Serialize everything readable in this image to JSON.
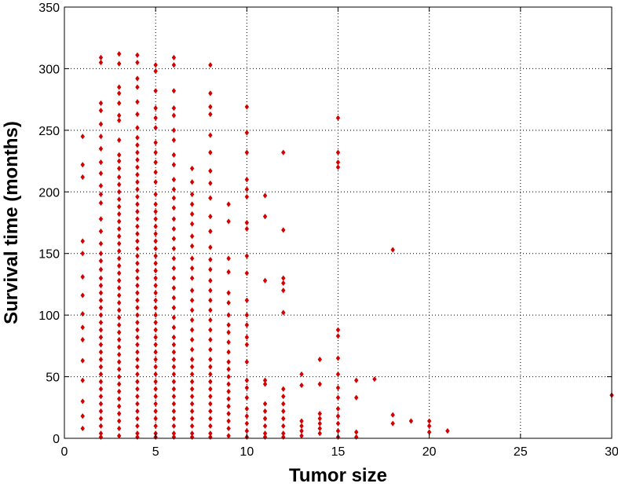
{
  "chart_data": {
    "type": "scatter",
    "title": "",
    "xlabel": "Tumor size",
    "ylabel": "Survival time (months)",
    "xlim": [
      0,
      30
    ],
    "ylim": [
      0,
      350
    ],
    "xticks": [
      0,
      5,
      10,
      15,
      20,
      25,
      30
    ],
    "yticks": [
      0,
      50,
      100,
      150,
      200,
      250,
      300,
      350
    ],
    "grid": true,
    "grid_style": "dotted",
    "marker": "diamond",
    "marker_color": "#d40000",
    "points": [
      [
        1,
        8
      ],
      [
        1,
        18
      ],
      [
        1,
        30
      ],
      [
        1,
        47
      ],
      [
        1,
        63
      ],
      [
        1,
        80
      ],
      [
        1,
        90
      ],
      [
        1,
        101
      ],
      [
        1,
        116
      ],
      [
        1,
        131
      ],
      [
        1,
        150
      ],
      [
        1,
        160
      ],
      [
        1,
        212
      ],
      [
        1,
        222
      ],
      [
        1,
        245
      ],
      [
        2,
        309
      ],
      [
        2,
        305
      ],
      [
        2,
        272
      ],
      [
        2,
        266
      ],
      [
        2,
        255
      ],
      [
        2,
        245
      ],
      [
        2,
        235
      ],
      [
        2,
        224
      ],
      [
        2,
        215
      ],
      [
        2,
        205
      ],
      [
        2,
        198
      ],
      [
        2,
        191
      ],
      [
        2,
        178
      ],
      [
        2,
        168
      ],
      [
        2,
        158
      ],
      [
        2,
        150
      ],
      [
        2,
        144
      ],
      [
        2,
        137
      ],
      [
        2,
        130
      ],
      [
        2,
        124
      ],
      [
        2,
        118
      ],
      [
        2,
        112
      ],
      [
        2,
        106
      ],
      [
        2,
        100
      ],
      [
        2,
        94
      ],
      [
        2,
        88
      ],
      [
        2,
        82
      ],
      [
        2,
        76
      ],
      [
        2,
        70
      ],
      [
        2,
        64
      ],
      [
        2,
        58
      ],
      [
        2,
        52
      ],
      [
        2,
        46
      ],
      [
        2,
        40
      ],
      [
        2,
        34
      ],
      [
        2,
        28
      ],
      [
        2,
        22
      ],
      [
        2,
        16
      ],
      [
        2,
        10
      ],
      [
        2,
        4
      ],
      [
        2,
        1
      ],
      [
        3,
        312
      ],
      [
        3,
        304
      ],
      [
        3,
        285
      ],
      [
        3,
        280
      ],
      [
        3,
        272
      ],
      [
        3,
        262
      ],
      [
        3,
        258
      ],
      [
        3,
        242
      ],
      [
        3,
        230
      ],
      [
        3,
        225
      ],
      [
        3,
        219
      ],
      [
        3,
        212
      ],
      [
        3,
        206
      ],
      [
        3,
        200
      ],
      [
        3,
        194
      ],
      [
        3,
        188
      ],
      [
        3,
        182
      ],
      [
        3,
        176
      ],
      [
        3,
        170
      ],
      [
        3,
        164
      ],
      [
        3,
        158
      ],
      [
        3,
        152
      ],
      [
        3,
        146
      ],
      [
        3,
        140
      ],
      [
        3,
        134
      ],
      [
        3,
        128
      ],
      [
        3,
        122
      ],
      [
        3,
        116
      ],
      [
        3,
        110
      ],
      [
        3,
        104
      ],
      [
        3,
        98
      ],
      [
        3,
        92
      ],
      [
        3,
        86
      ],
      [
        3,
        80
      ],
      [
        3,
        74
      ],
      [
        3,
        68
      ],
      [
        3,
        62
      ],
      [
        3,
        56
      ],
      [
        3,
        50
      ],
      [
        3,
        44
      ],
      [
        3,
        38
      ],
      [
        3,
        32
      ],
      [
        3,
        26
      ],
      [
        3,
        20
      ],
      [
        3,
        14
      ],
      [
        3,
        8
      ],
      [
        3,
        2
      ],
      [
        4,
        311
      ],
      [
        4,
        305
      ],
      [
        4,
        292
      ],
      [
        4,
        285
      ],
      [
        4,
        273
      ],
      [
        4,
        263
      ],
      [
        4,
        252
      ],
      [
        4,
        244
      ],
      [
        4,
        238
      ],
      [
        4,
        232
      ],
      [
        4,
        226
      ],
      [
        4,
        220
      ],
      [
        4,
        214
      ],
      [
        4,
        208
      ],
      [
        4,
        202
      ],
      [
        4,
        196
      ],
      [
        4,
        190
      ],
      [
        4,
        184
      ],
      [
        4,
        178
      ],
      [
        4,
        172
      ],
      [
        4,
        166
      ],
      [
        4,
        160
      ],
      [
        4,
        154
      ],
      [
        4,
        148
      ],
      [
        4,
        142
      ],
      [
        4,
        136
      ],
      [
        4,
        130
      ],
      [
        4,
        124
      ],
      [
        4,
        118
      ],
      [
        4,
        112
      ],
      [
        4,
        106
      ],
      [
        4,
        100
      ],
      [
        4,
        94
      ],
      [
        4,
        88
      ],
      [
        4,
        82
      ],
      [
        4,
        76
      ],
      [
        4,
        70
      ],
      [
        4,
        64
      ],
      [
        4,
        58
      ],
      [
        4,
        52
      ],
      [
        4,
        46
      ],
      [
        4,
        40
      ],
      [
        4,
        34
      ],
      [
        4,
        28
      ],
      [
        4,
        22
      ],
      [
        4,
        16
      ],
      [
        4,
        10
      ],
      [
        4,
        4
      ],
      [
        4,
        1
      ],
      [
        5,
        303
      ],
      [
        5,
        298
      ],
      [
        5,
        282
      ],
      [
        5,
        268
      ],
      [
        5,
        260
      ],
      [
        5,
        252
      ],
      [
        5,
        240
      ],
      [
        5,
        232
      ],
      [
        5,
        224
      ],
      [
        5,
        216
      ],
      [
        5,
        208
      ],
      [
        5,
        198
      ],
      [
        5,
        190
      ],
      [
        5,
        184
      ],
      [
        5,
        178
      ],
      [
        5,
        172
      ],
      [
        5,
        166
      ],
      [
        5,
        160
      ],
      [
        5,
        154
      ],
      [
        5,
        148
      ],
      [
        5,
        142
      ],
      [
        5,
        136
      ],
      [
        5,
        130
      ],
      [
        5,
        124
      ],
      [
        5,
        118
      ],
      [
        5,
        112
      ],
      [
        5,
        106
      ],
      [
        5,
        100
      ],
      [
        5,
        94
      ],
      [
        5,
        88
      ],
      [
        5,
        82
      ],
      [
        5,
        76
      ],
      [
        5,
        70
      ],
      [
        5,
        64
      ],
      [
        5,
        58
      ],
      [
        5,
        52
      ],
      [
        5,
        46
      ],
      [
        5,
        40
      ],
      [
        5,
        34
      ],
      [
        5,
        28
      ],
      [
        5,
        22
      ],
      [
        5,
        16
      ],
      [
        5,
        10
      ],
      [
        5,
        4
      ],
      [
        5,
        1
      ],
      [
        6,
        309
      ],
      [
        6,
        303
      ],
      [
        6,
        282
      ],
      [
        6,
        268
      ],
      [
        6,
        262
      ],
      [
        6,
        250
      ],
      [
        6,
        242
      ],
      [
        6,
        230
      ],
      [
        6,
        222
      ],
      [
        6,
        210
      ],
      [
        6,
        202
      ],
      [
        6,
        195
      ],
      [
        6,
        187
      ],
      [
        6,
        178
      ],
      [
        6,
        170
      ],
      [
        6,
        162
      ],
      [
        6,
        154
      ],
      [
        6,
        146
      ],
      [
        6,
        138
      ],
      [
        6,
        130
      ],
      [
        6,
        122
      ],
      [
        6,
        114
      ],
      [
        6,
        106
      ],
      [
        6,
        98
      ],
      [
        6,
        90
      ],
      [
        6,
        82
      ],
      [
        6,
        76
      ],
      [
        6,
        70
      ],
      [
        6,
        64
      ],
      [
        6,
        58
      ],
      [
        6,
        52
      ],
      [
        6,
        46
      ],
      [
        6,
        40
      ],
      [
        6,
        34
      ],
      [
        6,
        28
      ],
      [
        6,
        22
      ],
      [
        6,
        16
      ],
      [
        6,
        10
      ],
      [
        6,
        4
      ],
      [
        6,
        1
      ],
      [
        7,
        219
      ],
      [
        7,
        208
      ],
      [
        7,
        198
      ],
      [
        7,
        190
      ],
      [
        7,
        182
      ],
      [
        7,
        174
      ],
      [
        7,
        164
      ],
      [
        7,
        156
      ],
      [
        7,
        146
      ],
      [
        7,
        138
      ],
      [
        7,
        130
      ],
      [
        7,
        120
      ],
      [
        7,
        112
      ],
      [
        7,
        104
      ],
      [
        7,
        96
      ],
      [
        7,
        88
      ],
      [
        7,
        80
      ],
      [
        7,
        72
      ],
      [
        7,
        64
      ],
      [
        7,
        58
      ],
      [
        7,
        52
      ],
      [
        7,
        46
      ],
      [
        7,
        40
      ],
      [
        7,
        34
      ],
      [
        7,
        28
      ],
      [
        7,
        22
      ],
      [
        7,
        16
      ],
      [
        7,
        10
      ],
      [
        7,
        4
      ],
      [
        7,
        1
      ],
      [
        8,
        303
      ],
      [
        8,
        280
      ],
      [
        8,
        269
      ],
      [
        8,
        263
      ],
      [
        8,
        246
      ],
      [
        8,
        232
      ],
      [
        8,
        217
      ],
      [
        8,
        207
      ],
      [
        8,
        195
      ],
      [
        8,
        180
      ],
      [
        8,
        168
      ],
      [
        8,
        155
      ],
      [
        8,
        145
      ],
      [
        8,
        137
      ],
      [
        8,
        128
      ],
      [
        8,
        120
      ],
      [
        8,
        112
      ],
      [
        8,
        104
      ],
      [
        8,
        96
      ],
      [
        8,
        88
      ],
      [
        8,
        80
      ],
      [
        8,
        72
      ],
      [
        8,
        64
      ],
      [
        8,
        58
      ],
      [
        8,
        52
      ],
      [
        8,
        46
      ],
      [
        8,
        40
      ],
      [
        8,
        34
      ],
      [
        8,
        28
      ],
      [
        8,
        22
      ],
      [
        8,
        16
      ],
      [
        8,
        10
      ],
      [
        8,
        4
      ],
      [
        8,
        1
      ],
      [
        9,
        190
      ],
      [
        9,
        176
      ],
      [
        9,
        146
      ],
      [
        9,
        135
      ],
      [
        9,
        118
      ],
      [
        9,
        110
      ],
      [
        9,
        100
      ],
      [
        9,
        92
      ],
      [
        9,
        86
      ],
      [
        9,
        78
      ],
      [
        9,
        70
      ],
      [
        9,
        62
      ],
      [
        9,
        56
      ],
      [
        9,
        50
      ],
      [
        9,
        44
      ],
      [
        9,
        38
      ],
      [
        9,
        32
      ],
      [
        9,
        26
      ],
      [
        9,
        20
      ],
      [
        9,
        14
      ],
      [
        9,
        8
      ],
      [
        9,
        2
      ],
      [
        10,
        269
      ],
      [
        10,
        248
      ],
      [
        10,
        232
      ],
      [
        10,
        210
      ],
      [
        10,
        202
      ],
      [
        10,
        196
      ],
      [
        10,
        175
      ],
      [
        10,
        170
      ],
      [
        10,
        148
      ],
      [
        10,
        134
      ],
      [
        10,
        112
      ],
      [
        10,
        100
      ],
      [
        10,
        92
      ],
      [
        10,
        82
      ],
      [
        10,
        76
      ],
      [
        10,
        62
      ],
      [
        10,
        47
      ],
      [
        10,
        41
      ],
      [
        10,
        33
      ],
      [
        10,
        24
      ],
      [
        10,
        18
      ],
      [
        10,
        12
      ],
      [
        10,
        6
      ],
      [
        10,
        1
      ],
      [
        11,
        197
      ],
      [
        11,
        180
      ],
      [
        11,
        128
      ],
      [
        11,
        47
      ],
      [
        11,
        44
      ],
      [
        11,
        28
      ],
      [
        11,
        22
      ],
      [
        11,
        16
      ],
      [
        11,
        10
      ],
      [
        11,
        4
      ],
      [
        11,
        1
      ],
      [
        12,
        232
      ],
      [
        12,
        169
      ],
      [
        12,
        130
      ],
      [
        12,
        126
      ],
      [
        12,
        120
      ],
      [
        12,
        102
      ],
      [
        12,
        40
      ],
      [
        12,
        34
      ],
      [
        12,
        28
      ],
      [
        12,
        22
      ],
      [
        12,
        16
      ],
      [
        12,
        10
      ],
      [
        12,
        4
      ],
      [
        12,
        1
      ],
      [
        13,
        52
      ],
      [
        13,
        43
      ],
      [
        13,
        14
      ],
      [
        13,
        10
      ],
      [
        13,
        6
      ],
      [
        13,
        2
      ],
      [
        14,
        64
      ],
      [
        14,
        44
      ],
      [
        14,
        20
      ],
      [
        14,
        16
      ],
      [
        14,
        12
      ],
      [
        14,
        8
      ],
      [
        14,
        4
      ],
      [
        15,
        260
      ],
      [
        15,
        232
      ],
      [
        15,
        224
      ],
      [
        15,
        220
      ],
      [
        15,
        88
      ],
      [
        15,
        83
      ],
      [
        15,
        65
      ],
      [
        15,
        52
      ],
      [
        15,
        41
      ],
      [
        15,
        33
      ],
      [
        15,
        24
      ],
      [
        15,
        18
      ],
      [
        15,
        12
      ],
      [
        15,
        6
      ],
      [
        15,
        1
      ],
      [
        16,
        47
      ],
      [
        16,
        33
      ],
      [
        16,
        5
      ],
      [
        16,
        1
      ],
      [
        17,
        48
      ],
      [
        18,
        153
      ],
      [
        18,
        19
      ],
      [
        18,
        12
      ],
      [
        19,
        14
      ],
      [
        20,
        14
      ],
      [
        20,
        10
      ],
      [
        20,
        5
      ],
      [
        21,
        6
      ],
      [
        30,
        35
      ]
    ]
  }
}
